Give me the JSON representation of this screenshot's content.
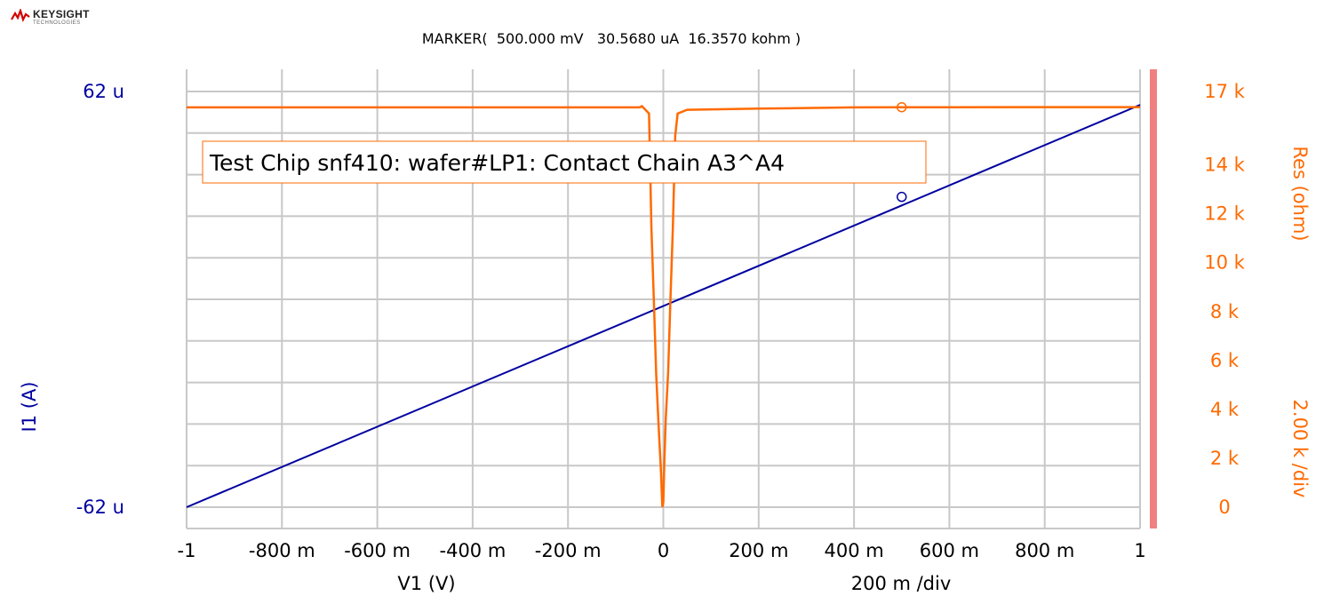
{
  "brand": {
    "name": "KEYSIGHT",
    "sub": "TECHNOLOGIES"
  },
  "marker_text": "MARKER(  500.000 mV   30.5680 uA  16.3570 kohm )",
  "chart_data": {
    "type": "line",
    "title": "Test Chip snf410: wafer#LP1: Contact Chain A3^A4",
    "xlabel": "V1 (V)",
    "ylabel_left": "I1 (A)",
    "ylabel_right": "Res (ohm)",
    "x_div_label": "200 m /div",
    "right_div_label": "2.00 k /div",
    "xlim": [
      -1,
      1
    ],
    "ylim_left": [
      -6.2e-05,
      6.2e-05
    ],
    "ylim_right": [
      0,
      17000
    ],
    "x_ticks": [
      -1,
      -0.8,
      -0.6,
      -0.4,
      -0.2,
      0,
      0.2,
      0.4,
      0.6,
      0.8,
      1
    ],
    "x_tick_labels": [
      "-1",
      "-800 m",
      "-600 m",
      "-400 m",
      "-200 m",
      "0",
      "200 m",
      "400 m",
      "600 m",
      "800 m",
      "1"
    ],
    "left_tick_labels": [
      {
        "value": 6.2e-05,
        "label": "62 u"
      },
      {
        "value": -6.2e-05,
        "label": "-62 u"
      }
    ],
    "right_ticks": [
      0,
      2000,
      4000,
      6000,
      8000,
      10000,
      12000,
      14000,
      17000
    ],
    "right_tick_labels": [
      "0",
      "2 k",
      "4 k",
      "6 k",
      "8 k",
      "10 k",
      "12 k",
      "14 k",
      "17 k"
    ],
    "grid": true,
    "colors": {
      "current": "#0000a0",
      "resistance": "#ff6a00",
      "grid": "#c8c8c8",
      "right_bar": "#f08080",
      "left_text": "#0000a0",
      "right_text": "#ff6a00"
    },
    "series": [
      {
        "name": "I1",
        "axis": "left",
        "color": "#0000a0",
        "x": [
          -1,
          1
        ],
        "y": [
          -6.2e-05,
          5.8e-05
        ]
      },
      {
        "name": "Res",
        "axis": "right",
        "color": "#ff6a00",
        "x": [
          -1,
          -0.05,
          -0.045,
          -0.03,
          -0.025,
          -0.02,
          -0.015,
          -0.01,
          -0.005,
          -0.002,
          0,
          0.002,
          0.005,
          0.01,
          0.015,
          0.02,
          0.025,
          0.03,
          0.05,
          0.2,
          0.4,
          0.6,
          0.8,
          1
        ],
        "y": [
          16350,
          16350,
          16400,
          16100,
          11400,
          8500,
          5400,
          3400,
          1500,
          0,
          200,
          1800,
          3600,
          5500,
          8500,
          11400,
          15200,
          16100,
          16250,
          16300,
          16350,
          16357,
          16360,
          16360
        ]
      }
    ],
    "markers": [
      {
        "series": "I1",
        "x": 0.5,
        "y": 3.0568e-05
      },
      {
        "series": "Res",
        "x": 0.5,
        "y": 16357
      }
    ]
  }
}
